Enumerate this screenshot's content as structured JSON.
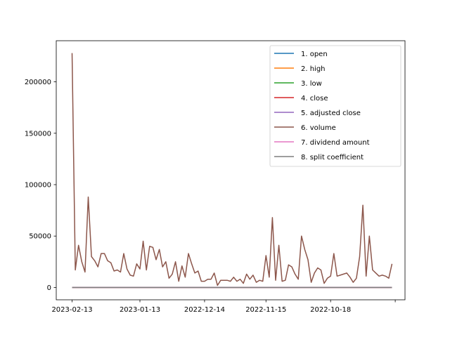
{
  "chart_data": {
    "type": "line",
    "x_tick_labels": [
      "2023-02-13",
      "2023-01-13",
      "2022-12-14",
      "2022-11-15",
      "2022-10-18",
      ""
    ],
    "x_tick_index": [
      0,
      21,
      41,
      60,
      80,
      100
    ],
    "ylim": [
      -12000,
      240000
    ],
    "y_ticks": [
      0,
      50000,
      100000,
      150000,
      200000
    ],
    "y_tick_labels": [
      "0",
      "50000",
      "100000",
      "150000",
      "200000"
    ],
    "grid": false,
    "legend_position": "top-right",
    "series": [
      {
        "name": "1. open",
        "color": "#1f77b4",
        "values": "near-zero"
      },
      {
        "name": "2. high",
        "color": "#ff7f0e",
        "values": "near-zero"
      },
      {
        "name": "3. low",
        "color": "#2ca02c",
        "values": "near-zero"
      },
      {
        "name": "4. close",
        "color": "#d62728",
        "values": "near-zero"
      },
      {
        "name": "5. adjusted close",
        "color": "#9467bd",
        "values": "near-zero"
      },
      {
        "name": "6. volume",
        "color": "#8c564b",
        "values": [
          228000,
          17000,
          41000,
          25000,
          15000,
          88000,
          30000,
          26000,
          20000,
          33000,
          33000,
          26000,
          24000,
          16000,
          17000,
          15000,
          33000,
          18000,
          12000,
          11000,
          23000,
          18000,
          45000,
          17000,
          40000,
          39000,
          27000,
          37000,
          20000,
          25000,
          9000,
          13000,
          25000,
          6000,
          21000,
          10000,
          33000,
          23000,
          14000,
          16000,
          6000,
          6000,
          8000,
          8000,
          14000,
          2000,
          7000,
          7000,
          7000,
          6000,
          10000,
          6000,
          8000,
          4000,
          13000,
          8000,
          12000,
          5000,
          7000,
          6000,
          31000,
          10000,
          68000,
          7000,
          41000,
          6000,
          7000,
          22000,
          20000,
          13000,
          8000,
          50000,
          37000,
          27000,
          5000,
          14000,
          19000,
          17000,
          4000,
          9000,
          11000,
          33000,
          11000,
          12000,
          13000,
          14000,
          10000,
          5000,
          9000,
          30000,
          80000,
          11000,
          50000,
          17000,
          14000,
          11000,
          12000,
          11000,
          9000,
          23000
        ]
      },
      {
        "name": "7. dividend amount",
        "color": "#e377c2",
        "values": "near-zero"
      },
      {
        "name": "8. split coefficient",
        "color": "#7f7f7f",
        "values": "near-zero"
      }
    ]
  }
}
